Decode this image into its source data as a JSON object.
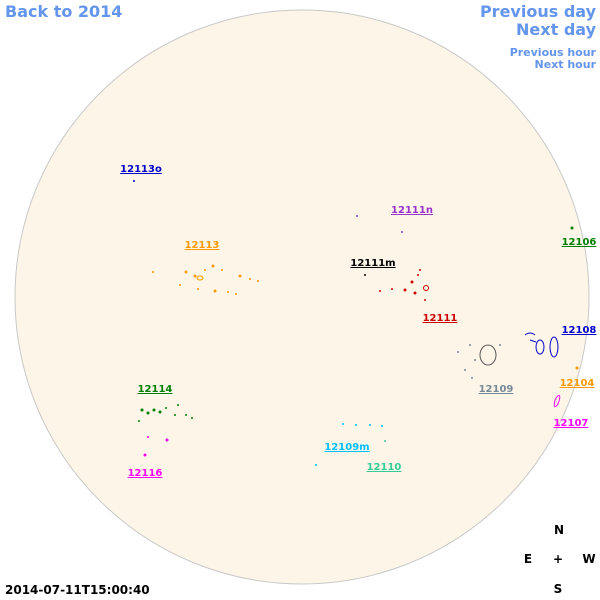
{
  "navigation": {
    "back": "Back to 2014",
    "previous_day": "Previous day",
    "next_day": "Next day",
    "previous_hour": "Previous hour",
    "next_hour": "Next hour"
  },
  "regions": [
    "12113o",
    "12111n",
    "12113",
    "12106",
    "12111m",
    "12111",
    "12108",
    "12109",
    "12104",
    "12114",
    "12107",
    "12109m",
    "12110",
    "12116"
  ],
  "compass": {
    "north": "N",
    "east": "E",
    "center": "+",
    "west": "W",
    "south": "S"
  },
  "timestamp": "2014-07-11T15:00:40"
}
